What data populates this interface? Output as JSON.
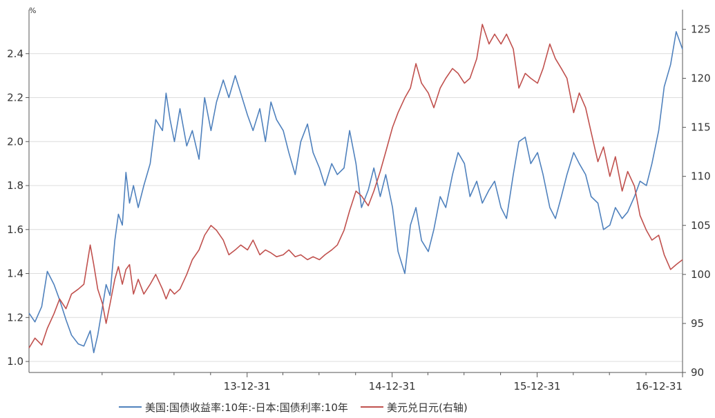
{
  "chart_data": {
    "type": "line",
    "left_axis": {
      "unit": "%",
      "ylim": [
        0.95,
        2.6
      ],
      "ticks": [
        1.0,
        1.2,
        1.4,
        1.6,
        1.8,
        2.0,
        2.2,
        2.4
      ],
      "tick_labels": [
        "1.0",
        "1.2",
        "1.4",
        "1.6",
        "1.8",
        "2.0",
        "2.2",
        "2.4"
      ]
    },
    "right_axis": {
      "ylim": [
        90,
        127
      ],
      "ticks": [
        90,
        95,
        100,
        105,
        110,
        115,
        120,
        125
      ],
      "tick_labels": [
        "90",
        "95",
        "100",
        "105",
        "110",
        "115",
        "120",
        "125"
      ]
    },
    "x_axis": {
      "range": [
        "2012-06-30",
        "2016-12-31"
      ],
      "tick_labels": [
        "13-12-31",
        "14-12-31",
        "15-12-31",
        "16-12-31"
      ],
      "tick_dates": [
        "2013-12-31",
        "2014-12-31",
        "2015-12-31",
        "2016-12-31"
      ],
      "minor_tick_dates": [
        "2012-12-31",
        "2013-06-30",
        "2013-09-30",
        "2014-03-31",
        "2014-06-30",
        "2014-09-30",
        "2015-03-31",
        "2015-06-30",
        "2015-09-30",
        "2016-03-31",
        "2016-06-30",
        "2016-09-30"
      ]
    },
    "grid": "horizontal",
    "legend_position": "bottom",
    "series": [
      {
        "name": "美国:国债收益率:10年:-日本:国债利率:10年",
        "axis": "left",
        "color": "#4f81bd",
        "points": [
          [
            "2012-06-30",
            1.22
          ],
          [
            "2012-07-15",
            1.18
          ],
          [
            "2012-08-01",
            1.25
          ],
          [
            "2012-08-15",
            1.41
          ],
          [
            "2012-09-01",
            1.35
          ],
          [
            "2012-09-15",
            1.28
          ],
          [
            "2012-10-01",
            1.19
          ],
          [
            "2012-10-15",
            1.12
          ],
          [
            "2012-11-01",
            1.08
          ],
          [
            "2012-11-15",
            1.07
          ],
          [
            "2012-12-01",
            1.14
          ],
          [
            "2012-12-10",
            1.04
          ],
          [
            "2012-12-20",
            1.12
          ],
          [
            "2013-01-01",
            1.25
          ],
          [
            "2013-01-10",
            1.35
          ],
          [
            "2013-01-20",
            1.3
          ],
          [
            "2013-02-01",
            1.55
          ],
          [
            "2013-02-10",
            1.67
          ],
          [
            "2013-02-20",
            1.62
          ],
          [
            "2013-03-01",
            1.86
          ],
          [
            "2013-03-10",
            1.72
          ],
          [
            "2013-03-20",
            1.8
          ],
          [
            "2013-04-01",
            1.7
          ],
          [
            "2013-04-15",
            1.8
          ],
          [
            "2013-05-01",
            1.9
          ],
          [
            "2013-05-15",
            2.1
          ],
          [
            "2013-06-01",
            2.05
          ],
          [
            "2013-06-10",
            2.22
          ],
          [
            "2013-06-20",
            2.1
          ],
          [
            "2013-07-01",
            2.0
          ],
          [
            "2013-07-15",
            2.15
          ],
          [
            "2013-08-01",
            1.98
          ],
          [
            "2013-08-15",
            2.05
          ],
          [
            "2013-09-01",
            1.92
          ],
          [
            "2013-09-15",
            2.2
          ],
          [
            "2013-10-01",
            2.05
          ],
          [
            "2013-10-15",
            2.18
          ],
          [
            "2013-11-01",
            2.28
          ],
          [
            "2013-11-15",
            2.2
          ],
          [
            "2013-12-01",
            2.3
          ],
          [
            "2013-12-15",
            2.22
          ],
          [
            "2014-01-01",
            2.12
          ],
          [
            "2014-01-15",
            2.05
          ],
          [
            "2014-02-01",
            2.15
          ],
          [
            "2014-02-15",
            2.0
          ],
          [
            "2014-03-01",
            2.18
          ],
          [
            "2014-03-15",
            2.1
          ],
          [
            "2014-04-01",
            2.05
          ],
          [
            "2014-04-15",
            1.95
          ],
          [
            "2014-05-01",
            1.85
          ],
          [
            "2014-05-15",
            2.0
          ],
          [
            "2014-06-01",
            2.08
          ],
          [
            "2014-06-15",
            1.95
          ],
          [
            "2014-07-01",
            1.88
          ],
          [
            "2014-07-15",
            1.8
          ],
          [
            "2014-08-01",
            1.9
          ],
          [
            "2014-08-15",
            1.85
          ],
          [
            "2014-09-01",
            1.88
          ],
          [
            "2014-09-15",
            2.05
          ],
          [
            "2014-10-01",
            1.9
          ],
          [
            "2014-10-15",
            1.7
          ],
          [
            "2014-11-01",
            1.78
          ],
          [
            "2014-11-15",
            1.88
          ],
          [
            "2014-12-01",
            1.75
          ],
          [
            "2014-12-15",
            1.85
          ],
          [
            "2015-01-01",
            1.7
          ],
          [
            "2015-01-15",
            1.5
          ],
          [
            "2015-02-01",
            1.4
          ],
          [
            "2015-02-15",
            1.62
          ],
          [
            "2015-03-01",
            1.7
          ],
          [
            "2015-03-15",
            1.55
          ],
          [
            "2015-04-01",
            1.5
          ],
          [
            "2015-04-15",
            1.6
          ],
          [
            "2015-05-01",
            1.75
          ],
          [
            "2015-05-15",
            1.7
          ],
          [
            "2015-06-01",
            1.85
          ],
          [
            "2015-06-15",
            1.95
          ],
          [
            "2015-07-01",
            1.9
          ],
          [
            "2015-07-15",
            1.75
          ],
          [
            "2015-08-01",
            1.82
          ],
          [
            "2015-08-15",
            1.72
          ],
          [
            "2015-09-01",
            1.78
          ],
          [
            "2015-09-15",
            1.82
          ],
          [
            "2015-10-01",
            1.7
          ],
          [
            "2015-10-15",
            1.65
          ],
          [
            "2015-11-01",
            1.85
          ],
          [
            "2015-11-15",
            2.0
          ],
          [
            "2015-12-01",
            2.02
          ],
          [
            "2015-12-15",
            1.9
          ],
          [
            "2016-01-01",
            1.95
          ],
          [
            "2016-01-15",
            1.85
          ],
          [
            "2016-02-01",
            1.7
          ],
          [
            "2016-02-15",
            1.65
          ],
          [
            "2016-03-01",
            1.75
          ],
          [
            "2016-03-15",
            1.85
          ],
          [
            "2016-04-01",
            1.95
          ],
          [
            "2016-04-15",
            1.9
          ],
          [
            "2016-05-01",
            1.85
          ],
          [
            "2016-05-15",
            1.75
          ],
          [
            "2016-06-01",
            1.72
          ],
          [
            "2016-06-15",
            1.6
          ],
          [
            "2016-07-01",
            1.62
          ],
          [
            "2016-07-15",
            1.7
          ],
          [
            "2016-08-01",
            1.65
          ],
          [
            "2016-08-15",
            1.68
          ],
          [
            "2016-09-01",
            1.75
          ],
          [
            "2016-09-15",
            1.82
          ],
          [
            "2016-10-01",
            1.8
          ],
          [
            "2016-10-15",
            1.9
          ],
          [
            "2016-11-01",
            2.05
          ],
          [
            "2016-11-15",
            2.25
          ],
          [
            "2016-12-01",
            2.35
          ],
          [
            "2016-12-15",
            2.5
          ],
          [
            "2016-12-31",
            2.42
          ]
        ]
      },
      {
        "name": "美元兑日元(右轴)",
        "axis": "right",
        "color": "#c0504d",
        "points": [
          [
            "2012-06-30",
            92.5
          ],
          [
            "2012-07-15",
            93.5
          ],
          [
            "2012-08-01",
            92.8
          ],
          [
            "2012-08-15",
            94.5
          ],
          [
            "2012-09-01",
            96.0
          ],
          [
            "2012-09-15",
            97.5
          ],
          [
            "2012-10-01",
            96.5
          ],
          [
            "2012-10-15",
            98.0
          ],
          [
            "2012-11-01",
            98.5
          ],
          [
            "2012-11-15",
            99.0
          ],
          [
            "2012-12-01",
            103.0
          ],
          [
            "2012-12-10",
            101.0
          ],
          [
            "2012-12-20",
            98.5
          ],
          [
            "2013-01-01",
            97.0
          ],
          [
            "2013-01-10",
            95.0
          ],
          [
            "2013-01-20",
            97.0
          ],
          [
            "2013-02-01",
            99.5
          ],
          [
            "2013-02-10",
            100.8
          ],
          [
            "2013-02-20",
            99.0
          ],
          [
            "2013-03-01",
            100.5
          ],
          [
            "2013-03-10",
            101.0
          ],
          [
            "2013-03-20",
            98.0
          ],
          [
            "2013-04-01",
            99.5
          ],
          [
            "2013-04-15",
            98.0
          ],
          [
            "2013-05-01",
            99.0
          ],
          [
            "2013-05-15",
            100.0
          ],
          [
            "2013-06-01",
            98.5
          ],
          [
            "2013-06-10",
            97.5
          ],
          [
            "2013-06-20",
            98.5
          ],
          [
            "2013-07-01",
            98.0
          ],
          [
            "2013-07-15",
            98.5
          ],
          [
            "2013-08-01",
            100.0
          ],
          [
            "2013-08-15",
            101.5
          ],
          [
            "2013-09-01",
            102.5
          ],
          [
            "2013-09-15",
            104.0
          ],
          [
            "2013-10-01",
            105.0
          ],
          [
            "2013-10-15",
            104.5
          ],
          [
            "2013-11-01",
            103.5
          ],
          [
            "2013-11-15",
            102.0
          ],
          [
            "2013-12-01",
            102.5
          ],
          [
            "2013-12-15",
            103.0
          ],
          [
            "2014-01-01",
            102.5
          ],
          [
            "2014-01-15",
            103.5
          ],
          [
            "2014-02-01",
            102.0
          ],
          [
            "2014-02-15",
            102.5
          ],
          [
            "2014-03-01",
            102.2
          ],
          [
            "2014-03-15",
            101.8
          ],
          [
            "2014-04-01",
            102.0
          ],
          [
            "2014-04-15",
            102.5
          ],
          [
            "2014-05-01",
            101.8
          ],
          [
            "2014-05-15",
            102.0
          ],
          [
            "2014-06-01",
            101.5
          ],
          [
            "2014-06-15",
            101.8
          ],
          [
            "2014-07-01",
            101.5
          ],
          [
            "2014-07-15",
            102.0
          ],
          [
            "2014-08-01",
            102.5
          ],
          [
            "2014-08-15",
            103.0
          ],
          [
            "2014-09-01",
            104.5
          ],
          [
            "2014-09-15",
            106.5
          ],
          [
            "2014-10-01",
            108.5
          ],
          [
            "2014-10-15",
            108.0
          ],
          [
            "2014-11-01",
            107.0
          ],
          [
            "2014-11-15",
            108.5
          ],
          [
            "2014-12-01",
            110.5
          ],
          [
            "2014-12-15",
            112.5
          ],
          [
            "2015-01-01",
            115.0
          ],
          [
            "2015-01-15",
            116.5
          ],
          [
            "2015-02-01",
            118.0
          ],
          [
            "2015-02-15",
            119.0
          ],
          [
            "2015-03-01",
            121.5
          ],
          [
            "2015-03-15",
            119.5
          ],
          [
            "2015-04-01",
            118.5
          ],
          [
            "2015-04-15",
            117.0
          ],
          [
            "2015-05-01",
            119.0
          ],
          [
            "2015-05-15",
            120.0
          ],
          [
            "2015-06-01",
            121.0
          ],
          [
            "2015-06-15",
            120.5
          ],
          [
            "2015-07-01",
            119.5
          ],
          [
            "2015-07-15",
            120.0
          ],
          [
            "2015-08-01",
            122.0
          ],
          [
            "2015-08-15",
            125.5
          ],
          [
            "2015-09-01",
            123.5
          ],
          [
            "2015-09-15",
            124.5
          ],
          [
            "2015-10-01",
            123.5
          ],
          [
            "2015-10-15",
            124.5
          ],
          [
            "2015-11-01",
            123.0
          ],
          [
            "2015-11-15",
            119.0
          ],
          [
            "2015-12-01",
            120.5
          ],
          [
            "2015-12-15",
            120.0
          ],
          [
            "2016-01-01",
            119.5
          ],
          [
            "2016-01-15",
            121.0
          ],
          [
            "2016-02-01",
            123.5
          ],
          [
            "2016-02-15",
            122.0
          ],
          [
            "2016-03-01",
            121.0
          ],
          [
            "2016-03-15",
            120.0
          ],
          [
            "2016-04-01",
            116.5
          ],
          [
            "2016-04-15",
            118.5
          ],
          [
            "2016-05-01",
            117.0
          ],
          [
            "2016-05-15",
            114.5
          ],
          [
            "2016-06-01",
            111.5
          ],
          [
            "2016-06-15",
            113.0
          ],
          [
            "2016-07-01",
            110.0
          ],
          [
            "2016-07-15",
            112.0
          ],
          [
            "2016-08-01",
            108.5
          ],
          [
            "2016-08-15",
            110.5
          ],
          [
            "2016-09-01",
            109.0
          ],
          [
            "2016-09-15",
            106.0
          ],
          [
            "2016-10-01",
            104.5
          ],
          [
            "2016-10-15",
            103.5
          ],
          [
            "2016-11-01",
            104.0
          ],
          [
            "2016-11-15",
            102.0
          ],
          [
            "2016-12-01",
            100.5
          ],
          [
            "2016-12-15",
            101.0
          ],
          [
            "2016-12-31",
            101.5
          ]
        ]
      }
    ]
  }
}
